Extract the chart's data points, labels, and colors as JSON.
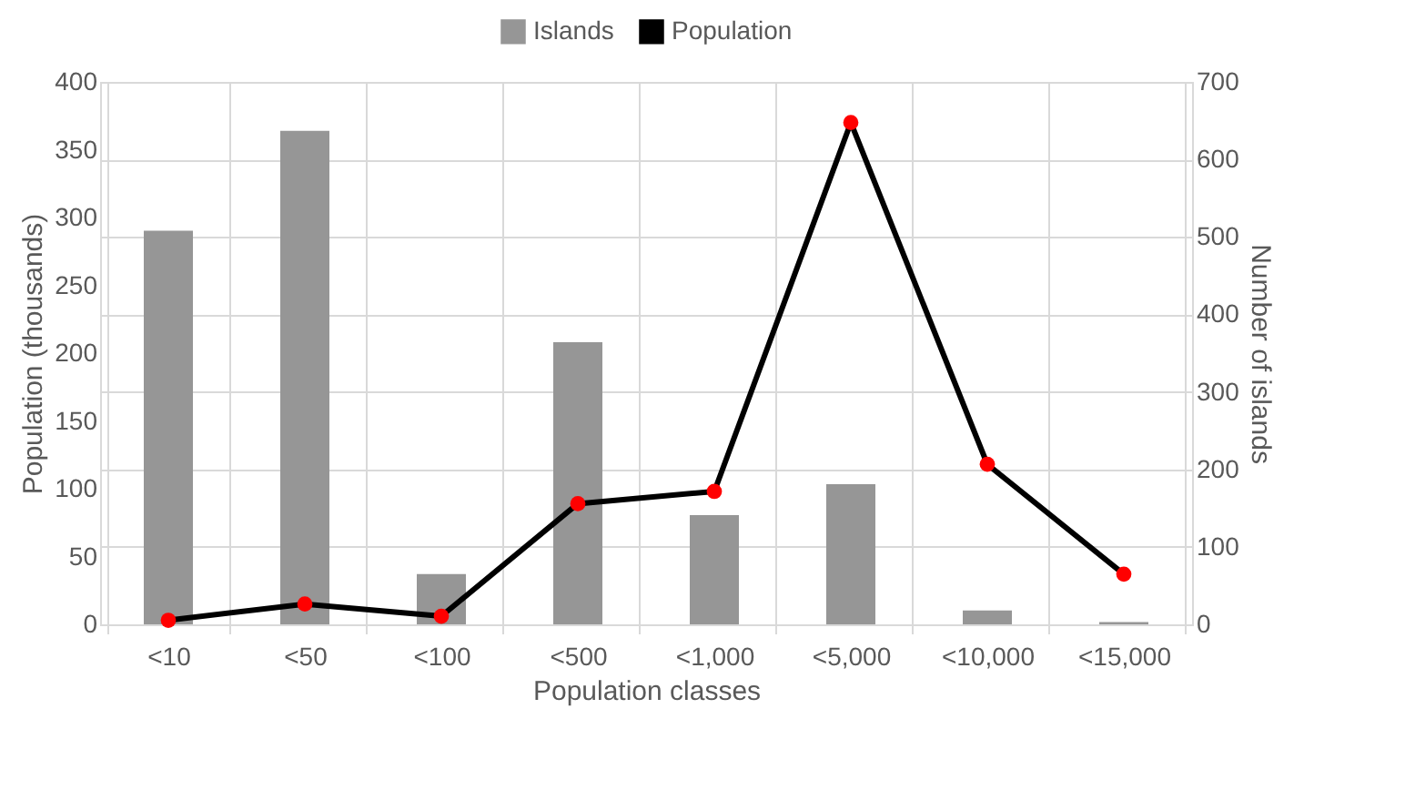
{
  "chart_data": {
    "type": "bar",
    "xlabel": "Population classes",
    "ylabel": "Population (thousands)",
    "y2label": "Number of islands",
    "categories": [
      "<10",
      "<50",
      "<100",
      "<500",
      "<1,000",
      "<5,000",
      "<10,000",
      "<15,000"
    ],
    "series": [
      {
        "name": "Islands",
        "axis": "y2",
        "color": "#969696",
        "values": [
          508,
          637,
          65,
          364,
          141,
          181,
          18,
          3
        ]
      },
      {
        "name": "Population",
        "type": "line",
        "color": "#000000",
        "values": [
          3,
          15,
          6,
          89,
          98,
          370,
          118,
          37
        ]
      }
    ],
    "ylim": [
      0,
      400
    ],
    "yticks": [
      0,
      50,
      100,
      150,
      200,
      250,
      300,
      350,
      400
    ],
    "y2lim": [
      0,
      700
    ],
    "y2ticks": [
      0,
      100,
      200,
      300,
      400,
      500,
      600,
      700
    ],
    "grid": true,
    "legend": "top",
    "marker": "circle"
  }
}
